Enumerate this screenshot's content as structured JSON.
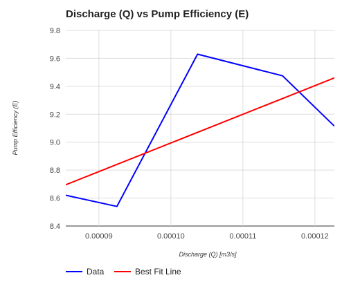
{
  "chart_data": {
    "type": "line",
    "title": "Discharge (Q) vs Pump Efficiency (E)",
    "xlabel": "Discharge (Q) [m3/s]",
    "ylabel": "Pump Efficiency (E)",
    "xlim": [
      8.54e-05,
      0.0001227
    ],
    "ylim": [
      8.4,
      9.8
    ],
    "x_ticks": [
      9e-05,
      0.0001,
      0.00011,
      0.00012
    ],
    "x_tick_labels": [
      "0.00009",
      "0.00010",
      "0.00011",
      "0.00012"
    ],
    "y_ticks": [
      8.4,
      8.6,
      8.8,
      9.0,
      9.2,
      9.4,
      9.6,
      9.8
    ],
    "y_tick_labels": [
      "8.4",
      "8.6",
      "8.8",
      "9.0",
      "9.2",
      "9.4",
      "9.6",
      "9.8"
    ],
    "grid": true,
    "legend_position": "bottom-left",
    "series": [
      {
        "name": "Data",
        "color": "#0000ff",
        "x": [
          8.54e-05,
          9.25e-05,
          0.0001037,
          0.0001155,
          0.0001227
        ],
        "y": [
          8.62,
          8.54,
          9.63,
          9.475,
          9.115
        ]
      },
      {
        "name": "Best Fit Line",
        "color": "#ff0000",
        "x": [
          8.54e-05,
          0.0001227
        ],
        "y": [
          8.695,
          9.46
        ]
      }
    ]
  }
}
